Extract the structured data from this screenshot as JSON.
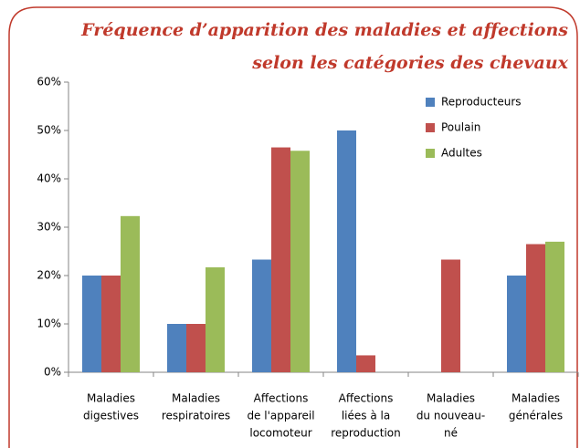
{
  "chart_data": {
    "type": "bar",
    "title": [
      "Fréquence d’apparition des maladies et affections",
      "selon les catégories des chevaux"
    ],
    "categories": [
      [
        "Maladies",
        "digestives"
      ],
      [
        "Maladies",
        "respiratoires"
      ],
      [
        "Affections",
        "de l'appareil",
        "locomoteur"
      ],
      [
        "Affections",
        "liées à la",
        "reproduction"
      ],
      [
        "Maladies",
        "du nouveau-",
        "né"
      ],
      [
        "Maladies",
        "générales"
      ]
    ],
    "series": [
      {
        "name": "Reproducteurs",
        "color": "#4f81bd",
        "values": [
          20,
          10,
          23.3,
          50,
          0,
          20
        ]
      },
      {
        "name": "Poulain",
        "color": "#c0504d",
        "values": [
          20,
          10,
          46.5,
          3.5,
          23.3,
          26.5
        ]
      },
      {
        "name": "Adultes",
        "color": "#9bbb59",
        "values": [
          32.3,
          21.7,
          45.8,
          0,
          0,
          27
        ]
      }
    ],
    "ylim": [
      0,
      60
    ],
    "yticks": [
      {
        "value": 0,
        "label": "0%"
      },
      {
        "value": 10,
        "label": "10%"
      },
      {
        "value": 20,
        "label": "20%"
      },
      {
        "value": 30,
        "label": "30%"
      },
      {
        "value": 40,
        "label": "40%"
      },
      {
        "value": 50,
        "label": "50%"
      },
      {
        "value": 60,
        "label": "60%"
      }
    ],
    "grid": false,
    "legend": "top-right"
  }
}
